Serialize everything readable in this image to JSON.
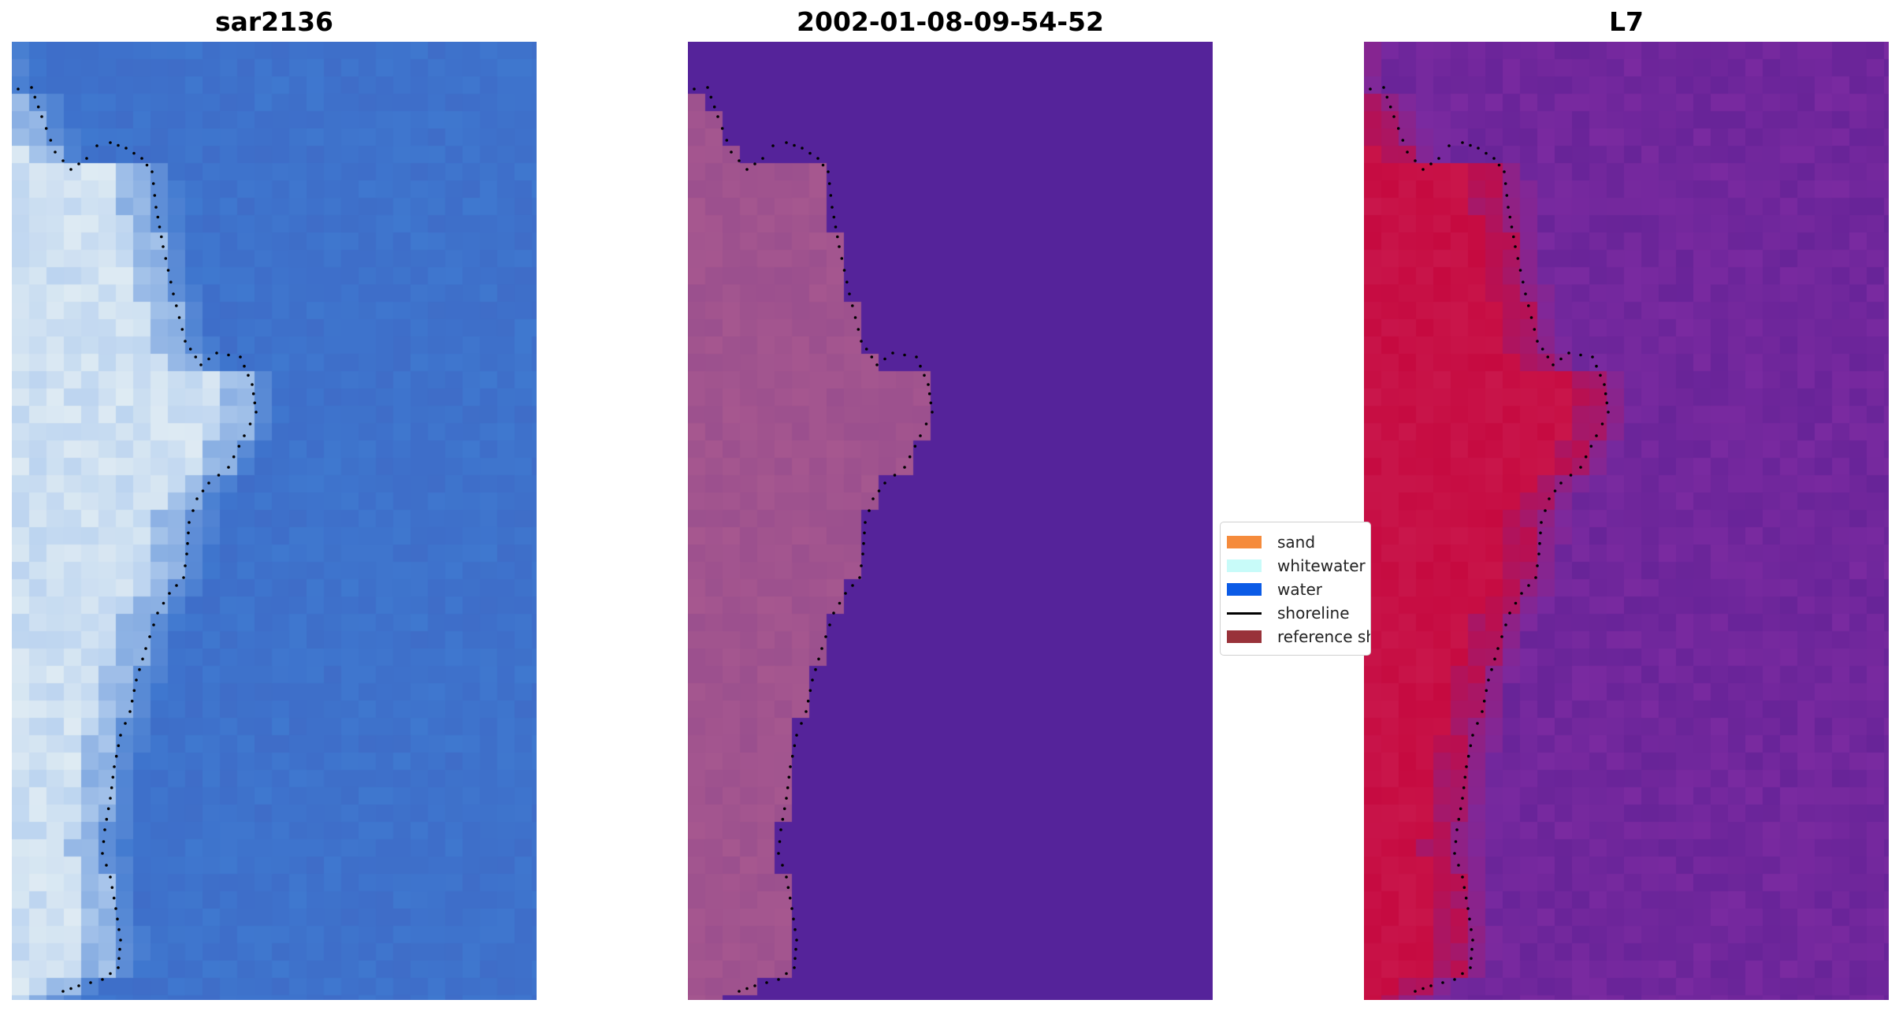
{
  "panels": [
    {
      "title": "sar2136",
      "style": "rgb"
    },
    {
      "title": "2002-01-08-09-54-52",
      "style": "classified"
    },
    {
      "title": "L7",
      "style": "index"
    }
  ],
  "legend": {
    "items": [
      {
        "label": "sand",
        "kind": "patch",
        "color": "#f58b3c"
      },
      {
        "label": "whitewater",
        "kind": "patch",
        "color": "#c8fbf9"
      },
      {
        "label": "water",
        "kind": "patch",
        "color": "#0b5be6"
      },
      {
        "label": "shoreline",
        "kind": "line",
        "color": "#000000"
      },
      {
        "label": "reference shoreline buffer",
        "kind": "patch",
        "color": "#99323a"
      }
    ]
  },
  "colors": {
    "water_rgb": "#3f78cf",
    "land_rgb": "#bcd4f0",
    "classified_background": "#55239a",
    "classified_land": "#a6578f",
    "index_water": "#7a2aa0",
    "index_land": "#c60a40",
    "shoreline": "#000000"
  }
}
